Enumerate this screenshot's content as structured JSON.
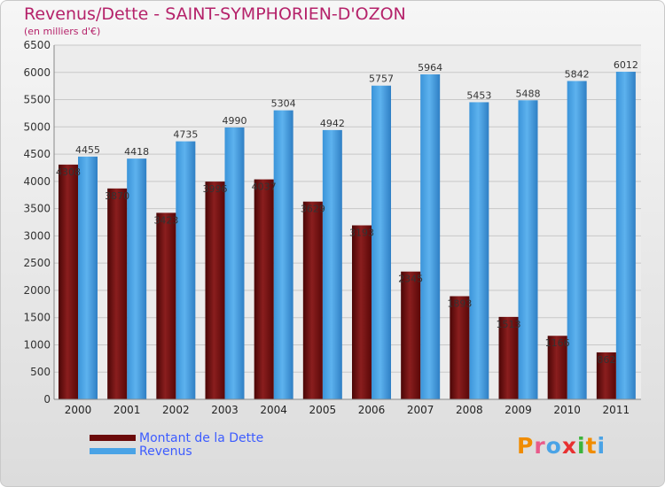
{
  "header": {
    "title": "Revenus/Dette - SAINT-SYMPHORIEN-D'OZON",
    "subtitle": "(en milliers d'€)"
  },
  "legend": {
    "debt_label": "Montant de la Dette",
    "revenue_label": "Revenus"
  },
  "logo": {
    "text": "Proxiti"
  },
  "colors": {
    "debt": "#6b0a0a",
    "revenue": "#4aa3e6",
    "title": "#b5226a"
  },
  "chart_data": {
    "type": "bar",
    "title": "Revenus/Dette - SAINT-SYMPHORIEN-D'OZON",
    "subtitle": "(en milliers d'€)",
    "categories": [
      "2000",
      "2001",
      "2002",
      "2003",
      "2004",
      "2005",
      "2006",
      "2007",
      "2008",
      "2009",
      "2010",
      "2011"
    ],
    "series": [
      {
        "name": "Montant de la Dette",
        "values": [
          4308,
          3870,
          3423,
          3996,
          4037,
          3629,
          3193,
          2345,
          1893,
          1513,
          1166,
          862
        ]
      },
      {
        "name": "Revenus",
        "values": [
          4455,
          4418,
          4735,
          4990,
          5304,
          4942,
          5757,
          5964,
          5453,
          5488,
          5842,
          6012
        ]
      }
    ],
    "yticks": [
      "0",
      "500",
      "1000",
      "1500",
      "2000",
      "2500",
      "3000",
      "3500",
      "4000",
      "4500",
      "5000",
      "5500",
      "6000",
      "6500"
    ],
    "ylim": [
      0,
      6500
    ],
    "grid": true,
    "legend_position": "bottom-left"
  }
}
